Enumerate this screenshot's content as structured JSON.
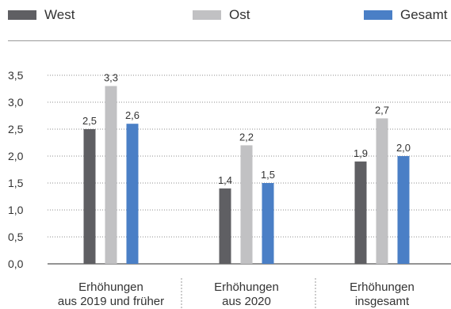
{
  "legend": [
    {
      "label": "West",
      "color": "#5f5f63"
    },
    {
      "label": "Ost",
      "color": "#c1c1c3"
    },
    {
      "label": "Gesamt",
      "color": "#4a7fc6"
    }
  ],
  "chart_data": {
    "type": "bar",
    "title": "",
    "xlabel": "",
    "ylabel": "",
    "ylim": [
      0,
      3.5
    ],
    "y_ticks": [
      "0,0",
      "0,5",
      "1,0",
      "1,5",
      "2,0",
      "2,5",
      "3,0",
      "3,5"
    ],
    "grid": "horizontal-dotted",
    "legend_position": "top",
    "categories": [
      [
        "Erhöhungen",
        "aus 2019 und früher"
      ],
      [
        "Erhöhungen",
        "aus 2020"
      ],
      [
        "Erhöhungen",
        "insgesamt"
      ]
    ],
    "series": [
      {
        "name": "West",
        "color": "#5f5f63",
        "values": [
          2.5,
          1.4,
          1.9
        ],
        "labels": [
          "2,5",
          "1,4",
          "1,9"
        ]
      },
      {
        "name": "Ost",
        "color": "#c1c1c3",
        "values": [
          3.3,
          2.2,
          2.7
        ],
        "labels": [
          "3,3",
          "2,2",
          "2,7"
        ]
      },
      {
        "name": "Gesamt",
        "color": "#4a7fc6",
        "values": [
          2.6,
          1.5,
          2.0
        ],
        "labels": [
          "2,6",
          "1,5",
          "2,0"
        ]
      }
    ]
  }
}
